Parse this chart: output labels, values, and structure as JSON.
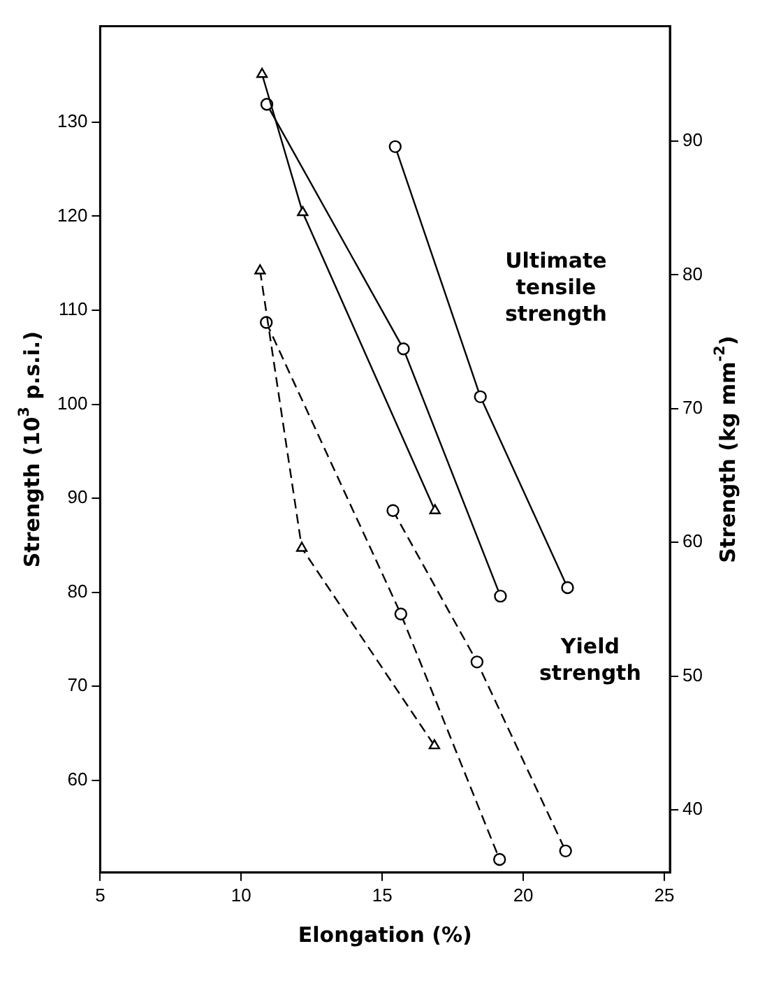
{
  "chart_data": {
    "type": "line",
    "xlabel": "Elongation (%)",
    "ylabel": "Strength (10$^{3}$ p.s.i.)",
    "y2label": "Strength (kg mm$^{-2}$)",
    "annotations": [
      "Ultimate tensile strength",
      "Yield strength"
    ],
    "xlim": [
      5,
      25.2
    ],
    "xticks": [
      5,
      10,
      15,
      20,
      25
    ],
    "ylim": [
      50.2,
      140.2
    ],
    "yticks": [
      60,
      70,
      80,
      90,
      100,
      110,
      120,
      130
    ],
    "y2lim": [
      35.3,
      98.6
    ],
    "y2ticks": [
      40,
      50,
      60,
      70,
      80,
      90
    ],
    "legend": false,
    "series": [
      {
        "color": "#000000",
        "marker": "triangle",
        "line_style": "solid",
        "x": [
          10.74,
          12.18,
          16.87
        ],
        "values": [
          135.1,
          120.4,
          88.7
        ]
      },
      {
        "color": "#000000",
        "marker": "circle",
        "line_style": "solid",
        "x": [
          10.91,
          15.75,
          19.19
        ],
        "values": [
          131.9,
          105.9,
          79.6
        ]
      },
      {
        "color": "#000000",
        "marker": "circle",
        "line_style": "solid",
        "x": [
          15.46,
          18.48,
          21.57
        ],
        "values": [
          127.4,
          100.8,
          80.5
        ]
      },
      {
        "color": "#000000",
        "marker": "triangle",
        "line_style": "dashed",
        "x": [
          10.67,
          12.15,
          16.85
        ],
        "values": [
          114.2,
          84.7,
          63.7
        ]
      },
      {
        "color": "#000000",
        "marker": "circle",
        "line_style": "dashed",
        "x": [
          10.89,
          15.66,
          19.16
        ],
        "values": [
          108.7,
          77.7,
          51.6
        ]
      },
      {
        "color": "#000000",
        "marker": "circle",
        "line_style": "dashed",
        "x": [
          15.38,
          18.36,
          21.5
        ],
        "values": [
          88.7,
          72.6,
          52.5
        ]
      }
    ]
  }
}
